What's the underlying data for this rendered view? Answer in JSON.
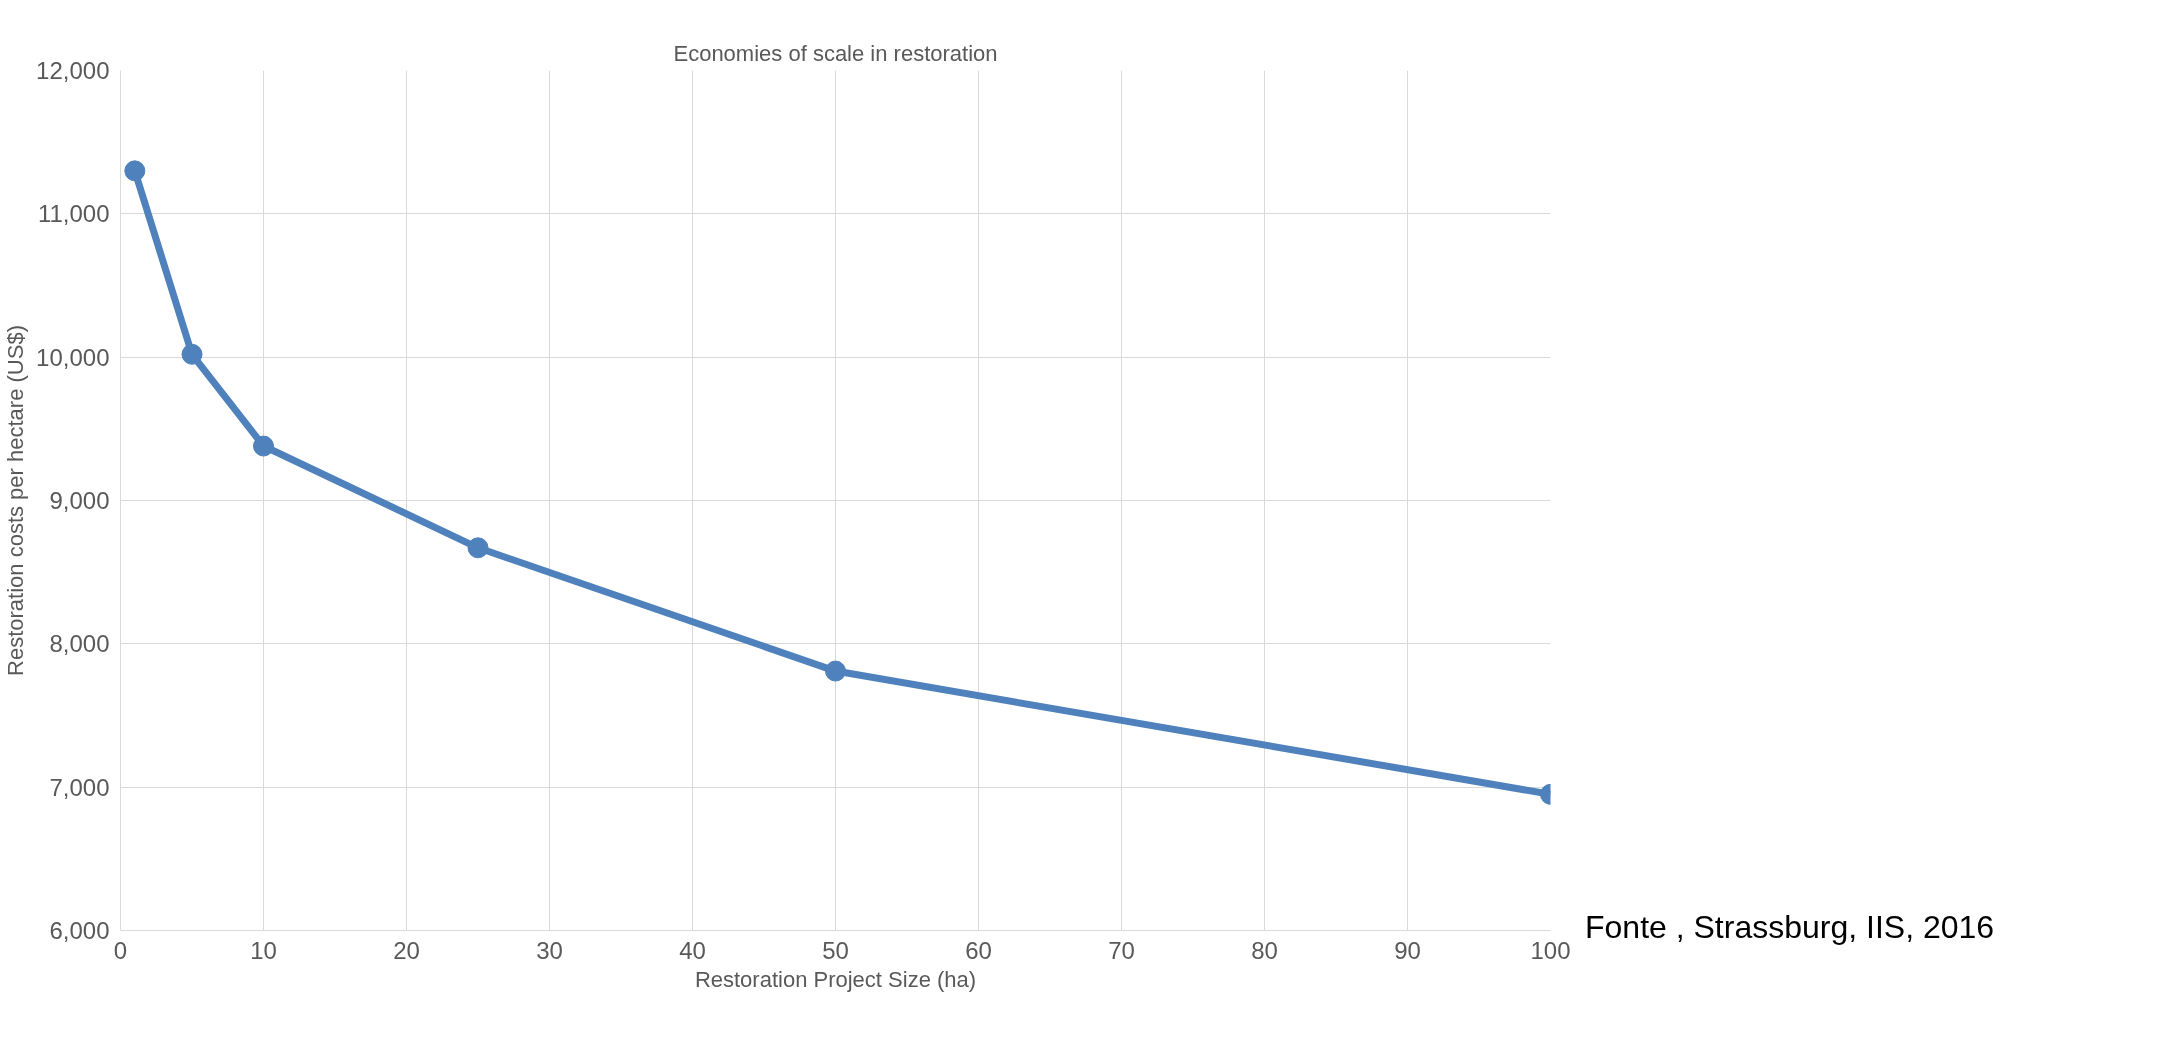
{
  "chart_data": {
    "type": "line",
    "title": "Economies of scale in restoration",
    "xlabel": "Restoration Project Size (ha)",
    "ylabel": "Restoration costs per hectare (US$)",
    "x": [
      1,
      5,
      10,
      25,
      50,
      100
    ],
    "series": [
      {
        "color": "#4f81bd",
        "values": [
          11300,
          10020,
          9380,
          8670,
          7810,
          6950
        ]
      }
    ],
    "xlim": [
      0,
      100
    ],
    "xticks": [
      0,
      10,
      20,
      30,
      40,
      50,
      60,
      70,
      80,
      90,
      100
    ],
    "ylim": [
      6000,
      12000
    ],
    "yticks": [
      {
        "value": 6000,
        "label": "6,000"
      },
      {
        "value": 7000,
        "label": "7,000"
      },
      {
        "value": 8000,
        "label": "8,000"
      },
      {
        "value": 9000,
        "label": "9,000"
      },
      {
        "value": 10000,
        "label": "10,000"
      },
      {
        "value": 11000,
        "label": "11,000"
      },
      {
        "value": 12000,
        "label": "12,000"
      }
    ],
    "grid": true,
    "marker": "circle",
    "line_style": "solid",
    "annotations": [
      "Fonte , Strassburg, IIS, 2016"
    ]
  }
}
